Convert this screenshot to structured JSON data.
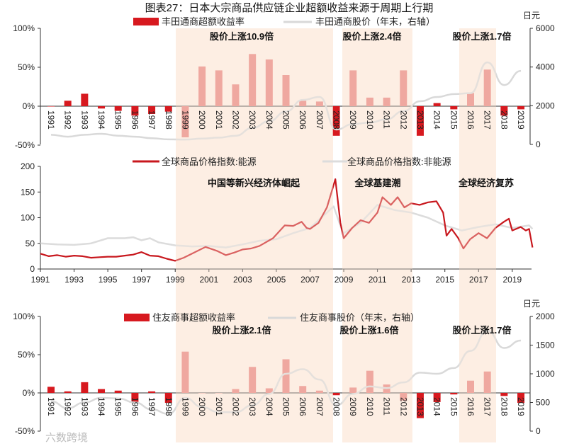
{
  "title": "图表27：日本大宗商品供应链企业超额收益来源于周期上行期",
  "watermark": "六数跨境",
  "colors": {
    "bar": "#d7191f",
    "bar_shaded": "#e9837d",
    "price_line": "#d9d9d9",
    "energy": "#c8171d",
    "non_energy": "#dcdcdc",
    "shade": "#fdeee3"
  },
  "shaded_periods": [
    [
      1999,
      2008
    ],
    [
      2009,
      2013
    ],
    [
      2016,
      2018
    ]
  ],
  "chart_data": [
    {
      "type": "bar+line",
      "legend": [
        "丰田通商超额收益率",
        "丰田通商股价（年末，右轴）"
      ],
      "right_unit": "日元",
      "left_ticks": [
        "100%",
        "50%",
        "0%",
        "-50%"
      ],
      "right_ticks": [
        "6000",
        "4000",
        "2000",
        "0"
      ],
      "ylim": [
        -50,
        100
      ],
      "y2lim": [
        0,
        6000
      ],
      "annotations": [
        "股价上涨10.9倍",
        "股价上涨2.4倍",
        "股价上涨1.7倍"
      ],
      "categories": [
        "1991",
        "1992",
        "1993",
        "1994",
        "1995",
        "1996",
        "1997",
        "1998",
        "1999",
        "2000",
        "2001",
        "2002",
        "2003",
        "2004",
        "2005",
        "2006",
        "2007",
        "2008",
        "2009",
        "2010",
        "2011",
        "2012",
        "2013",
        "2014",
        "2015",
        "2016",
        "2017",
        "2018",
        "2019"
      ],
      "excess_return_pct": [
        0,
        7,
        16,
        -3,
        -6,
        -12,
        -10,
        -7,
        -40,
        51,
        46,
        28,
        67,
        60,
        40,
        7,
        6,
        -38,
        46,
        11,
        11,
        46,
        -38,
        4,
        -4,
        17,
        47,
        -12,
        -4
      ],
      "price_yen": [
        500,
        400,
        500,
        550,
        450,
        400,
        320,
        260,
        250,
        300,
        350,
        450,
        850,
        1200,
        1700,
        2300,
        2450,
        770,
        1050,
        1130,
        1300,
        1720,
        2230,
        2450,
        2600,
        2650,
        4240,
        3070,
        3800
      ]
    },
    {
      "type": "line",
      "legend": [
        "全球商品价格指数:能源",
        "全球商品价格指数:非能源"
      ],
      "y_ticks": [
        "200",
        "150",
        "100",
        "50",
        "0"
      ],
      "ylim": [
        0,
        200
      ],
      "x_ticks": [
        "1991",
        "1993",
        "1995",
        "1997",
        "1999",
        "2001",
        "2003",
        "2005",
        "2007",
        "2009",
        "2011",
        "2013",
        "2015",
        "2017",
        "2019"
      ],
      "annotations": [
        "中国等新兴经济体崛起",
        "全球基建潮",
        "全球经济复苏"
      ],
      "series": [
        {
          "name": "全球商品价格指数:能源",
          "x": [
            1991,
            1991.5,
            1992,
            1992.5,
            1993,
            1993.5,
            1994,
            1994.5,
            1995,
            1995.5,
            1996,
            1996.5,
            1997,
            1997.5,
            1998,
            1998.5,
            1999,
            1999.5,
            2000,
            2000.8,
            2001.5,
            2002,
            2002.5,
            2003,
            2003.5,
            2004,
            2004.8,
            2005.5,
            2006,
            2006.5,
            2006.8,
            2007,
            2007.5,
            2008,
            2008.5,
            2008.8,
            2009,
            2009.5,
            2010,
            2010.5,
            2011,
            2011.3,
            2011.8,
            2012.2,
            2012.6,
            2013,
            2013.5,
            2014,
            2014.5,
            2014.9,
            2015.1,
            2015.4,
            2015.8,
            2016.1,
            2016.5,
            2017,
            2017.5,
            2018,
            2018.5,
            2018.8,
            2019,
            2019.5,
            2019.8,
            2020,
            2020.2
          ],
          "y": [
            30,
            25,
            27,
            24,
            26,
            25,
            22,
            23,
            24,
            24,
            26,
            28,
            33,
            26,
            25,
            20,
            16,
            22,
            30,
            43,
            35,
            27,
            32,
            38,
            40,
            45,
            60,
            85,
            84,
            92,
            80,
            78,
            90,
            120,
            175,
            90,
            60,
            80,
            95,
            90,
            110,
            140,
            125,
            140,
            120,
            128,
            125,
            130,
            132,
            110,
            65,
            78,
            60,
            40,
            58,
            70,
            60,
            80,
            92,
            98,
            75,
            82,
            75,
            78,
            42
          ]
        },
        {
          "name": "全球商品价格指数:非能源",
          "x": [
            1991,
            1992,
            1993,
            1994,
            1995,
            1996,
            1996.5,
            1997,
            1997.5,
            1998,
            1999,
            2000,
            2001,
            2002,
            2003,
            2004,
            2005,
            2006,
            2007,
            2008,
            2008.4,
            2008.9,
            2009,
            2010,
            2011,
            2012,
            2013,
            2014,
            2015,
            2016,
            2017,
            2018,
            2019,
            2020,
            2020.2
          ],
          "y": [
            50,
            48,
            47,
            50,
            60,
            60,
            62,
            56,
            60,
            52,
            46,
            44,
            45,
            42,
            48,
            55,
            58,
            70,
            80,
            110,
            122,
            75,
            70,
            90,
            125,
            115,
            110,
            100,
            85,
            75,
            82,
            87,
            80,
            85,
            78
          ]
        }
      ]
    },
    {
      "type": "bar+line",
      "legend": [
        "住友商事超额收益率",
        "住友商事股价（年末，右轴）"
      ],
      "right_unit": "日元",
      "left_ticks": [
        "100%",
        "50%",
        "0%",
        "-50%"
      ],
      "right_ticks": [
        "2000",
        "1500",
        "1000",
        "500",
        "0"
      ],
      "ylim": [
        -50,
        100
      ],
      "y2lim": [
        0,
        2000
      ],
      "annotations": [
        "股价上涨2.1倍",
        "股价上涨1.6倍",
        "股价上涨1.7倍"
      ],
      "categories": [
        "1991",
        "1992",
        "1993",
        "1994",
        "1995",
        "1996",
        "1997",
        "1998",
        "1999",
        "2000",
        "2001",
        "2002",
        "2003",
        "2004",
        "2005",
        "2006",
        "2007",
        "2008",
        "2009",
        "2010",
        "2011",
        "2012",
        "2013",
        "2014",
        "2015",
        "2016",
        "2017",
        "2018",
        "2019"
      ],
      "excess_return_pct": [
        8,
        2,
        14,
        5,
        3,
        -12,
        2,
        -13,
        54,
        0,
        0,
        5,
        34,
        6,
        44,
        9,
        3,
        -3,
        7,
        29,
        11,
        -10,
        -33,
        -12,
        -2,
        16,
        28,
        -4,
        -13
      ],
      "price_yen": [
        520,
        400,
        500,
        580,
        570,
        500,
        380,
        300,
        580,
        420,
        330,
        330,
        450,
        650,
        1000,
        1080,
        900,
        450,
        650,
        780,
        750,
        850,
        1020,
        1000,
        1100,
        1400,
        1750,
        1450,
        1580
      ]
    }
  ]
}
